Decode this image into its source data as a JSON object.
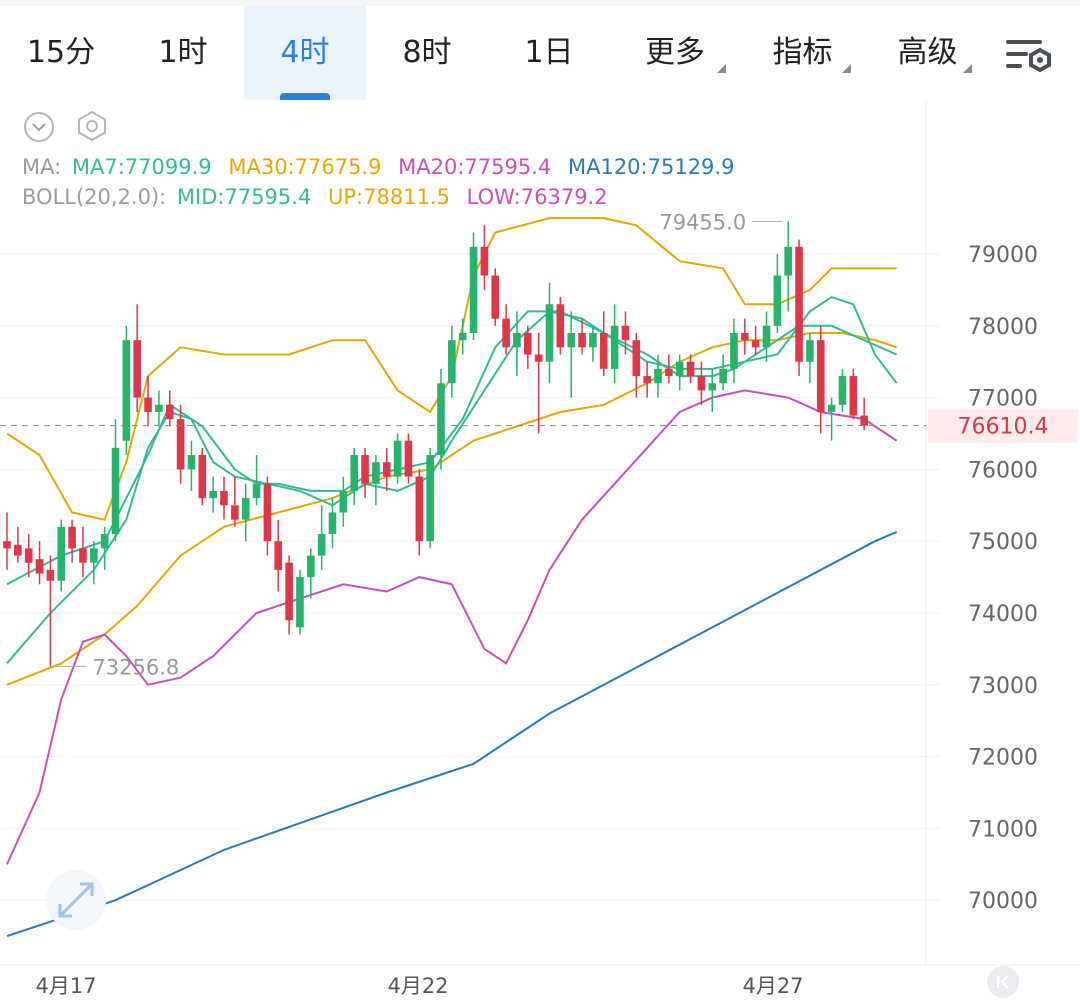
{
  "tabs": [
    "15分",
    "1时",
    "4时",
    "8时",
    "1日",
    "更多",
    "指标",
    "高级"
  ],
  "active_tab": "4时",
  "legend": {
    "ma_label": "MA:",
    "ma": [
      {
        "text": "MA7:77099.9",
        "color": "#33bb99"
      },
      {
        "text": "MA30:77675.9",
        "color": "#e8a700"
      },
      {
        "text": "MA20:77595.4",
        "color": "#cc4fb8"
      },
      {
        "text": "MA120:75129.9",
        "color": "#2a7ab8"
      }
    ],
    "boll_label": "BOLL(20,2.0):",
    "boll": [
      {
        "text": "MID:77595.4",
        "color": "#33bb99"
      },
      {
        "text": "UP:78811.5",
        "color": "#e8a700"
      },
      {
        "text": "LOW:76379.2",
        "color": "#cc4fb8"
      }
    ]
  },
  "icons": {
    "collapse": "chevron-down-icon",
    "settings": "hexagon-settings-icon",
    "expand": "expand-icon",
    "back": "skip-back-icon"
  },
  "colors": {
    "up": "#26b36a",
    "down": "#e0364a",
    "price_tag_bg": "#fdeaea",
    "price_tag_text": "#e0364a"
  },
  "chart_data": {
    "type": "candlestick",
    "y_ticks": [
      79000,
      78000,
      77000,
      76000,
      75000,
      74000,
      73000,
      72000,
      71000,
      70000
    ],
    "x_labels": [
      "4月17",
      "4月22",
      "4月27"
    ],
    "current_price": "76610.4",
    "high_label": "79455.0",
    "low_label": "73256.8",
    "candles": [
      {
        "o": 75000,
        "h": 75400,
        "l": 74600,
        "c": 74900
      },
      {
        "o": 74950,
        "h": 75200,
        "l": 74700,
        "c": 74800
      },
      {
        "o": 74900,
        "h": 75100,
        "l": 74500,
        "c": 74700
      },
      {
        "o": 74750,
        "h": 75000,
        "l": 74400,
        "c": 74550
      },
      {
        "o": 74600,
        "h": 74800,
        "l": 73256.8,
        "c": 74450
      },
      {
        "o": 74450,
        "h": 75300,
        "l": 74300,
        "c": 75200
      },
      {
        "o": 75200,
        "h": 75300,
        "l": 74700,
        "c": 74900
      },
      {
        "o": 74900,
        "h": 75200,
        "l": 74500,
        "c": 74700
      },
      {
        "o": 74700,
        "h": 75000,
        "l": 74400,
        "c": 74900
      },
      {
        "o": 74900,
        "h": 75200,
        "l": 74600,
        "c": 75100
      },
      {
        "o": 75100,
        "h": 76700,
        "l": 75000,
        "c": 76300
      },
      {
        "o": 76400,
        "h": 78000,
        "l": 76200,
        "c": 77800
      },
      {
        "o": 77800,
        "h": 78300,
        "l": 76800,
        "c": 77000
      },
      {
        "o": 77000,
        "h": 77300,
        "l": 76600,
        "c": 76800
      },
      {
        "o": 76800,
        "h": 77100,
        "l": 76600,
        "c": 76900
      },
      {
        "o": 76900,
        "h": 77100,
        "l": 76600,
        "c": 76700
      },
      {
        "o": 76700,
        "h": 76900,
        "l": 75800,
        "c": 76000
      },
      {
        "o": 76000,
        "h": 76400,
        "l": 75700,
        "c": 76200
      },
      {
        "o": 76200,
        "h": 76300,
        "l": 75500,
        "c": 75600
      },
      {
        "o": 75600,
        "h": 75900,
        "l": 75400,
        "c": 75700
      },
      {
        "o": 75700,
        "h": 75900,
        "l": 75300,
        "c": 75500
      },
      {
        "o": 75500,
        "h": 75900,
        "l": 75200,
        "c": 75300
      },
      {
        "o": 75300,
        "h": 75800,
        "l": 75000,
        "c": 75600
      },
      {
        "o": 75600,
        "h": 76200,
        "l": 75500,
        "c": 75800
      },
      {
        "o": 75800,
        "h": 75900,
        "l": 74800,
        "c": 75000
      },
      {
        "o": 75000,
        "h": 75300,
        "l": 74300,
        "c": 74600
      },
      {
        "o": 74700,
        "h": 74800,
        "l": 73700,
        "c": 73900
      },
      {
        "o": 73800,
        "h": 74600,
        "l": 73700,
        "c": 74500
      },
      {
        "o": 74500,
        "h": 74900,
        "l": 74200,
        "c": 74800
      },
      {
        "o": 74800,
        "h": 75500,
        "l": 74600,
        "c": 75100
      },
      {
        "o": 75100,
        "h": 75600,
        "l": 74900,
        "c": 75400
      },
      {
        "o": 75400,
        "h": 75900,
        "l": 75200,
        "c": 75700
      },
      {
        "o": 75700,
        "h": 76300,
        "l": 75500,
        "c": 76200
      },
      {
        "o": 76200,
        "h": 76300,
        "l": 75600,
        "c": 75800
      },
      {
        "o": 75800,
        "h": 76200,
        "l": 75500,
        "c": 76100
      },
      {
        "o": 76100,
        "h": 76300,
        "l": 75700,
        "c": 75900
      },
      {
        "o": 75900,
        "h": 76500,
        "l": 75800,
        "c": 76400
      },
      {
        "o": 76400,
        "h": 76500,
        "l": 75800,
        "c": 75900
      },
      {
        "o": 75900,
        "h": 76000,
        "l": 74800,
        "c": 75000
      },
      {
        "o": 75000,
        "h": 76300,
        "l": 74900,
        "c": 76200
      },
      {
        "o": 76200,
        "h": 77400,
        "l": 76000,
        "c": 77200
      },
      {
        "o": 77200,
        "h": 78000,
        "l": 77000,
        "c": 77800
      },
      {
        "o": 77800,
        "h": 78100,
        "l": 77600,
        "c": 77900
      },
      {
        "o": 77900,
        "h": 79300,
        "l": 77800,
        "c": 79100
      },
      {
        "o": 79100,
        "h": 79400,
        "l": 78500,
        "c": 78700
      },
      {
        "o": 78700,
        "h": 78800,
        "l": 78000,
        "c": 78100
      },
      {
        "o": 78100,
        "h": 78300,
        "l": 77600,
        "c": 77700
      },
      {
        "o": 77700,
        "h": 78200,
        "l": 77300,
        "c": 77900
      },
      {
        "o": 77900,
        "h": 78000,
        "l": 77400,
        "c": 77600
      },
      {
        "o": 77600,
        "h": 77900,
        "l": 76500,
        "c": 77500
      },
      {
        "o": 77500,
        "h": 78600,
        "l": 77200,
        "c": 78300
      },
      {
        "o": 78300,
        "h": 78400,
        "l": 77600,
        "c": 77700
      },
      {
        "o": 77700,
        "h": 78200,
        "l": 77000,
        "c": 77900
      },
      {
        "o": 77900,
        "h": 78100,
        "l": 77600,
        "c": 77700
      },
      {
        "o": 77700,
        "h": 78000,
        "l": 77500,
        "c": 77900
      },
      {
        "o": 77900,
        "h": 78200,
        "l": 77300,
        "c": 77400
      },
      {
        "o": 77400,
        "h": 78300,
        "l": 77200,
        "c": 78000
      },
      {
        "o": 78000,
        "h": 78200,
        "l": 77600,
        "c": 77800
      },
      {
        "o": 77800,
        "h": 77900,
        "l": 77000,
        "c": 77300
      },
      {
        "o": 77300,
        "h": 77500,
        "l": 77000,
        "c": 77200
      },
      {
        "o": 77200,
        "h": 77600,
        "l": 77000,
        "c": 77400
      },
      {
        "o": 77400,
        "h": 77600,
        "l": 77200,
        "c": 77300
      },
      {
        "o": 77300,
        "h": 77600,
        "l": 77100,
        "c": 77500
      },
      {
        "o": 77500,
        "h": 77600,
        "l": 77200,
        "c": 77300
      },
      {
        "o": 77300,
        "h": 77500,
        "l": 76900,
        "c": 77100
      },
      {
        "o": 77100,
        "h": 77400,
        "l": 76800,
        "c": 77200
      },
      {
        "o": 77200,
        "h": 77600,
        "l": 77100,
        "c": 77400
      },
      {
        "o": 77400,
        "h": 78100,
        "l": 77200,
        "c": 77900
      },
      {
        "o": 77900,
        "h": 78100,
        "l": 77600,
        "c": 77800
      },
      {
        "o": 77800,
        "h": 78000,
        "l": 77600,
        "c": 77700
      },
      {
        "o": 77700,
        "h": 78200,
        "l": 77500,
        "c": 78000
      },
      {
        "o": 78000,
        "h": 79000,
        "l": 77900,
        "c": 78700
      },
      {
        "o": 78700,
        "h": 79455,
        "l": 78200,
        "c": 79100
      },
      {
        "o": 79100,
        "h": 79200,
        "l": 77300,
        "c": 77500
      },
      {
        "o": 77500,
        "h": 77900,
        "l": 77200,
        "c": 77800
      },
      {
        "o": 77800,
        "h": 78000,
        "l": 76500,
        "c": 76800
      },
      {
        "o": 76800,
        "h": 77000,
        "l": 76400,
        "c": 76900
      },
      {
        "o": 76900,
        "h": 77400,
        "l": 76800,
        "c": 77300
      },
      {
        "o": 77300,
        "h": 77400,
        "l": 76700,
        "c": 76750
      },
      {
        "o": 76750,
        "h": 77000,
        "l": 76550,
        "c": 76610.4
      }
    ],
    "lines": {
      "ma120": {
        "color": "#2a7ab8",
        "points": [
          [
            0,
            69500
          ],
          [
            10,
            70000
          ],
          [
            20,
            70700
          ],
          [
            35,
            71500
          ],
          [
            43,
            71900
          ],
          [
            50,
            72600
          ],
          [
            60,
            73400
          ],
          [
            70,
            74200
          ],
          [
            80,
            75000
          ],
          [
            82,
            75130
          ]
        ]
      },
      "boll_up": {
        "color": "#e8a700",
        "points": [
          [
            0,
            76500
          ],
          [
            3,
            76200
          ],
          [
            6,
            75400
          ],
          [
            9,
            75300
          ],
          [
            11,
            76100
          ],
          [
            13,
            77300
          ],
          [
            16,
            77700
          ],
          [
            20,
            77600
          ],
          [
            26,
            77600
          ],
          [
            30,
            77800
          ],
          [
            33,
            77800
          ],
          [
            36,
            77100
          ],
          [
            39,
            76800
          ],
          [
            41,
            77300
          ],
          [
            43,
            78700
          ],
          [
            45,
            79300
          ],
          [
            50,
            79500
          ],
          [
            55,
            79500
          ],
          [
            58,
            79400
          ],
          [
            62,
            78900
          ],
          [
            66,
            78800
          ],
          [
            68,
            78300
          ],
          [
            71,
            78300
          ],
          [
            74,
            78500
          ],
          [
            76,
            78800
          ],
          [
            79,
            78800
          ],
          [
            82,
            78800
          ]
        ]
      },
      "boll_mid": {
        "color": "#33bb99",
        "points": [
          [
            0,
            74400
          ],
          [
            5,
            74800
          ],
          [
            9,
            75000
          ],
          [
            13,
            76200
          ],
          [
            15,
            76900
          ],
          [
            18,
            76600
          ],
          [
            21,
            76000
          ],
          [
            23,
            75800
          ],
          [
            25,
            75800
          ],
          [
            28,
            75700
          ],
          [
            31,
            75700
          ],
          [
            33,
            75900
          ],
          [
            36,
            76000
          ],
          [
            39,
            76100
          ],
          [
            42,
            76700
          ],
          [
            45,
            77700
          ],
          [
            48,
            78200
          ],
          [
            51,
            78200
          ],
          [
            55,
            77900
          ],
          [
            59,
            77600
          ],
          [
            62,
            77300
          ],
          [
            65,
            77300
          ],
          [
            67,
            77400
          ],
          [
            70,
            77700
          ],
          [
            73,
            78000
          ],
          [
            76,
            78000
          ],
          [
            79,
            77800
          ],
          [
            82,
            77600
          ]
        ]
      },
      "boll_low": {
        "color": "#cc4fb8",
        "points": [
          [
            0,
            70500
          ],
          [
            3,
            71500
          ],
          [
            5,
            72800
          ],
          [
            7,
            73600
          ],
          [
            9,
            73700
          ],
          [
            11,
            73400
          ],
          [
            13,
            73000
          ],
          [
            16,
            73100
          ],
          [
            19,
            73400
          ],
          [
            23,
            74000
          ],
          [
            27,
            74200
          ],
          [
            31,
            74400
          ],
          [
            35,
            74300
          ],
          [
            38,
            74500
          ],
          [
            41,
            74400
          ],
          [
            44,
            73500
          ],
          [
            46,
            73300
          ],
          [
            48,
            73900
          ],
          [
            50,
            74600
          ],
          [
            53,
            75300
          ],
          [
            56,
            75800
          ],
          [
            59,
            76300
          ],
          [
            62,
            76800
          ],
          [
            65,
            77000
          ],
          [
            68,
            77100
          ],
          [
            72,
            77000
          ],
          [
            75,
            76800
          ],
          [
            79,
            76700
          ],
          [
            82,
            76400
          ]
        ]
      },
      "ma30": {
        "color": "#e8a700",
        "points": [
          [
            0,
            73000
          ],
          [
            5,
            73300
          ],
          [
            9,
            73700
          ],
          [
            12,
            74100
          ],
          [
            16,
            74800
          ],
          [
            20,
            75200
          ],
          [
            25,
            75400
          ],
          [
            30,
            75600
          ],
          [
            35,
            75900
          ],
          [
            39,
            76000
          ],
          [
            43,
            76400
          ],
          [
            47,
            76600
          ],
          [
            51,
            76800
          ],
          [
            55,
            76900
          ],
          [
            59,
            77200
          ],
          [
            62,
            77500
          ],
          [
            65,
            77700
          ],
          [
            68,
            77800
          ],
          [
            71,
            77800
          ],
          [
            74,
            77900
          ],
          [
            77,
            77900
          ],
          [
            80,
            77800
          ],
          [
            82,
            77700
          ]
        ]
      },
      "ma7": {
        "color": "#33bb99",
        "points": [
          [
            0,
            73300
          ],
          [
            4,
            74000
          ],
          [
            8,
            74600
          ],
          [
            11,
            75300
          ],
          [
            13,
            76300
          ],
          [
            15,
            76800
          ],
          [
            17,
            76700
          ],
          [
            19,
            76100
          ],
          [
            21,
            75900
          ],
          [
            24,
            75800
          ],
          [
            27,
            75700
          ],
          [
            30,
            75500
          ],
          [
            33,
            75800
          ],
          [
            36,
            75700
          ],
          [
            39,
            75900
          ],
          [
            41,
            76400
          ],
          [
            44,
            77100
          ],
          [
            47,
            77800
          ],
          [
            50,
            78200
          ],
          [
            53,
            78100
          ],
          [
            56,
            77800
          ],
          [
            59,
            77500
          ],
          [
            62,
            77400
          ],
          [
            65,
            77400
          ],
          [
            68,
            77500
          ],
          [
            71,
            77600
          ],
          [
            74,
            78200
          ],
          [
            76,
            78400
          ],
          [
            78,
            78300
          ],
          [
            80,
            77600
          ],
          [
            82,
            77200
          ]
        ]
      }
    }
  }
}
